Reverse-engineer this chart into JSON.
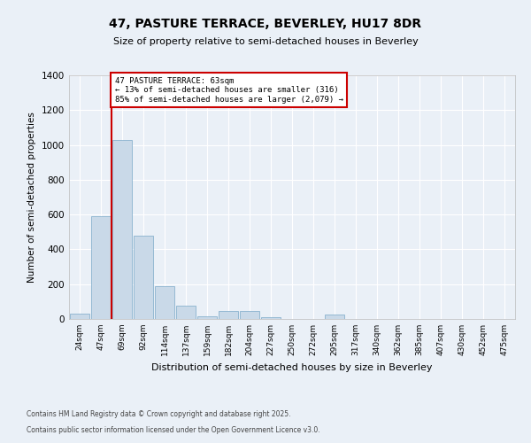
{
  "title_line1": "47, PASTURE TERRACE, BEVERLEY, HU17 8DR",
  "title_line2": "Size of property relative to semi-detached houses in Beverley",
  "xlabel": "Distribution of semi-detached houses by size in Beverley",
  "ylabel": "Number of semi-detached properties",
  "categories": [
    "24sqm",
    "47sqm",
    "69sqm",
    "92sqm",
    "114sqm",
    "137sqm",
    "159sqm",
    "182sqm",
    "204sqm",
    "227sqm",
    "250sqm",
    "272sqm",
    "295sqm",
    "317sqm",
    "340sqm",
    "362sqm",
    "385sqm",
    "407sqm",
    "430sqm",
    "452sqm",
    "475sqm"
  ],
  "values": [
    30,
    590,
    1030,
    480,
    190,
    75,
    15,
    45,
    45,
    10,
    0,
    0,
    25,
    0,
    0,
    0,
    0,
    0,
    0,
    0,
    0
  ],
  "bar_color": "#c9d9e8",
  "bar_edge_color": "#7aa8c8",
  "subject_label": "47 PASTURE TERRACE: 63sqm",
  "annotation_line2": "← 13% of semi-detached houses are smaller (316)",
  "annotation_line3": "85% of semi-detached houses are larger (2,079) →",
  "annotation_box_color": "#ffffff",
  "annotation_box_edge": "#cc0000",
  "vline_color": "#cc0000",
  "vline_x": 1.5,
  "ylim": [
    0,
    1400
  ],
  "yticks": [
    0,
    200,
    400,
    600,
    800,
    1000,
    1200,
    1400
  ],
  "bg_color": "#eaf0f7",
  "plot_bg_color": "#eaf0f7",
  "grid_color": "#ffffff",
  "footer_line1": "Contains HM Land Registry data © Crown copyright and database right 2025.",
  "footer_line2": "Contains public sector information licensed under the Open Government Licence v3.0."
}
